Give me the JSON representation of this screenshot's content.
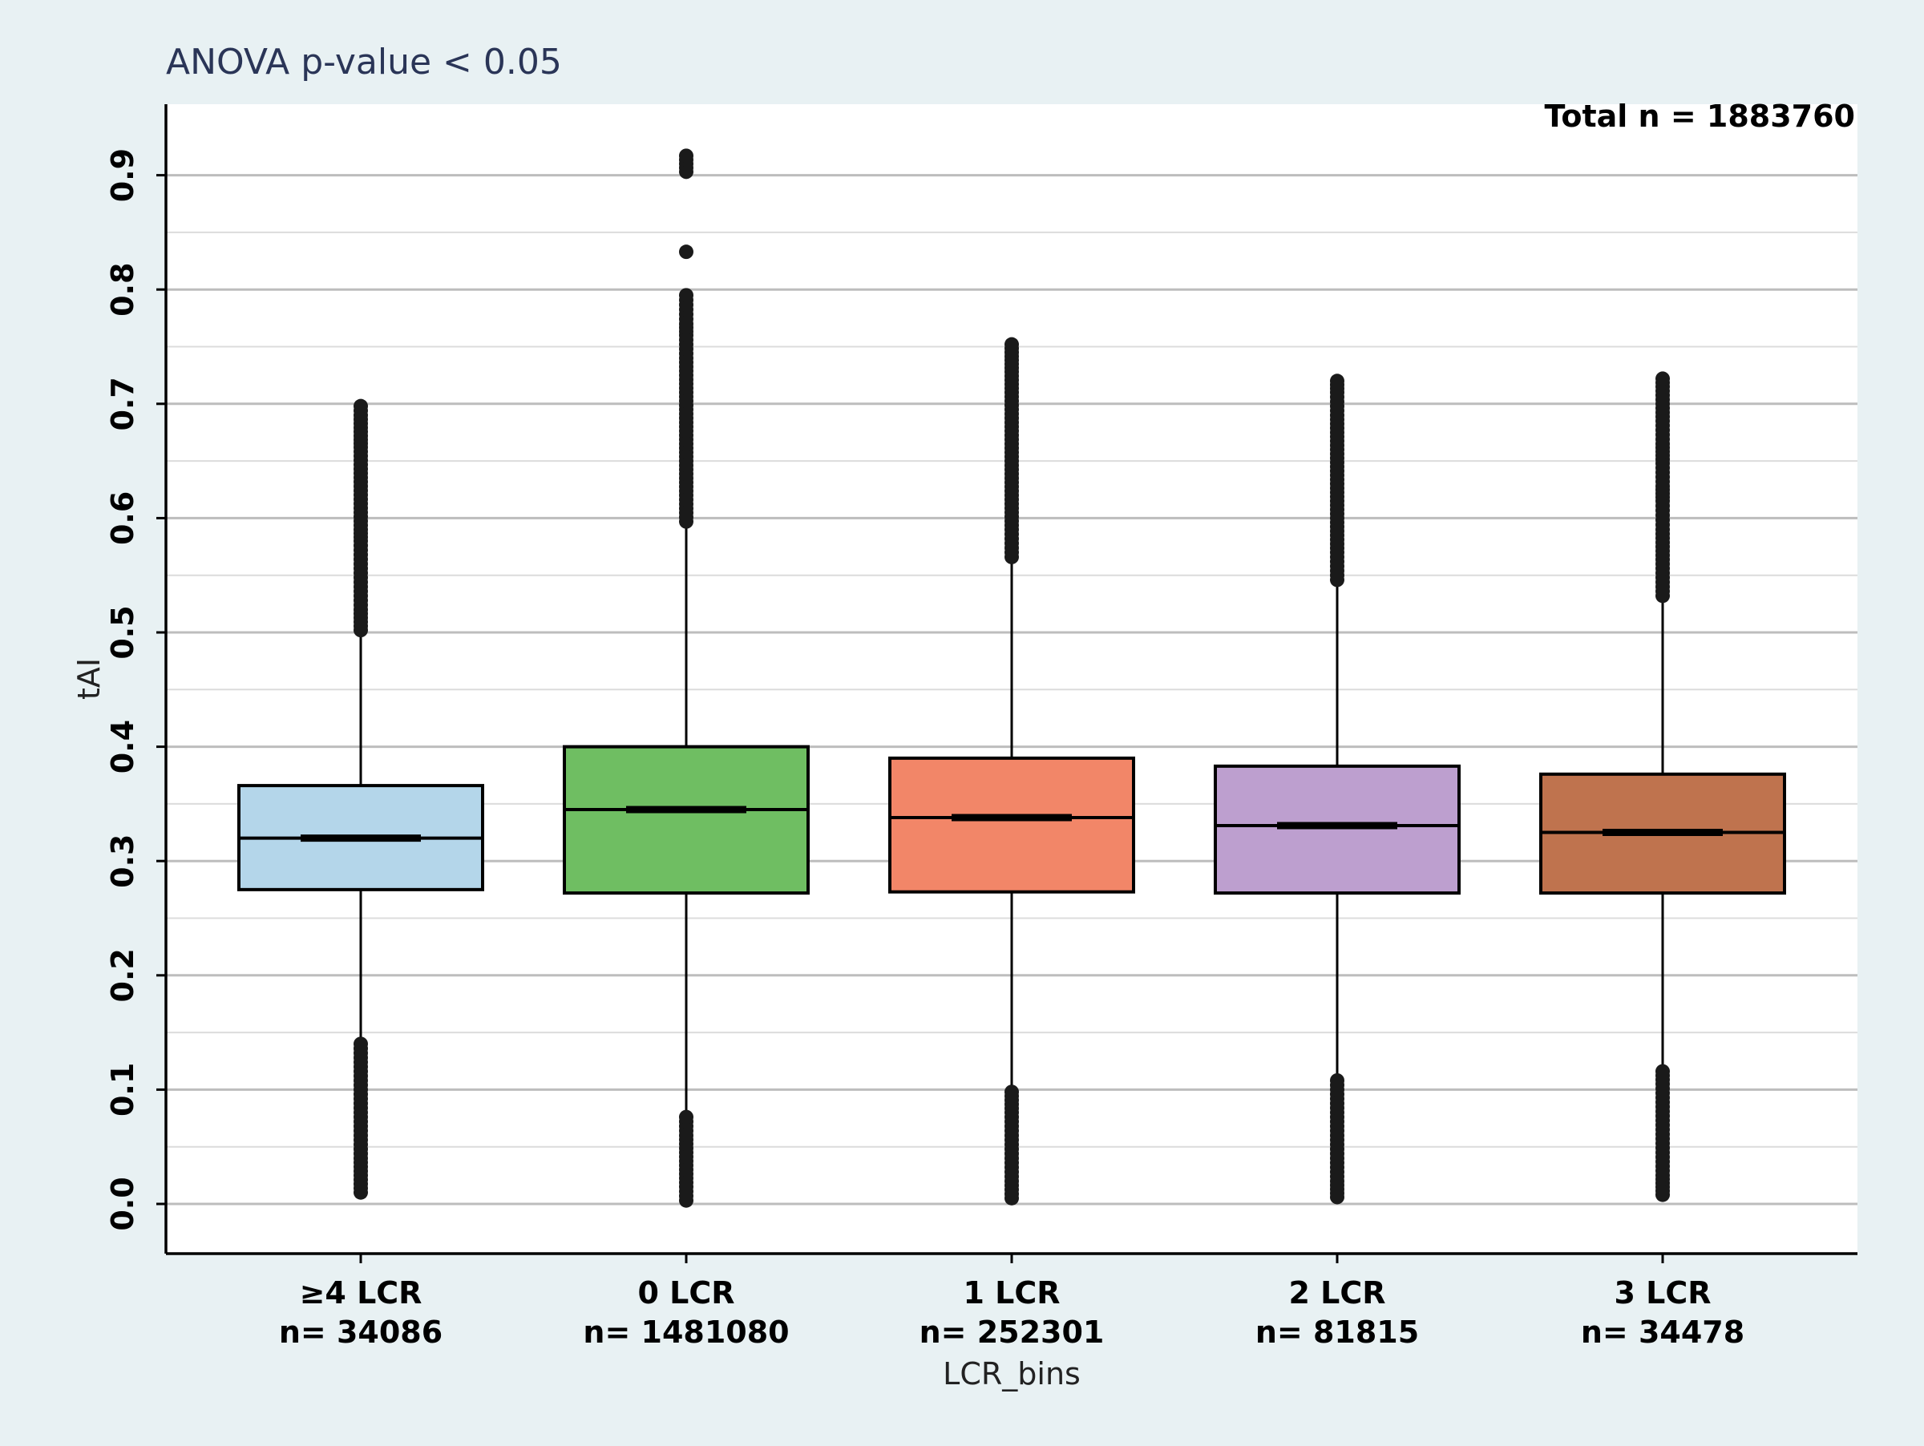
{
  "chart_data": {
    "type": "box",
    "title": "ANOVA  p-value < 0.05",
    "annotation": "Total n = 1883760",
    "xlabel": "LCR_bins",
    "ylabel": "tAI",
    "ylim": [
      -0.04,
      0.96
    ],
    "yticks": [
      0.0,
      0.1,
      0.2,
      0.3,
      0.4,
      0.5,
      0.6,
      0.7,
      0.8,
      0.9
    ],
    "ytick_labels": [
      "0.0",
      "0.1",
      "0.2",
      "0.3",
      "0.4",
      "0.5",
      "0.6",
      "0.7",
      "0.8",
      "0.9"
    ],
    "grid": true,
    "categories": [
      {
        "label": "≥4 LCR",
        "n_label": "n= 34086",
        "color": "#b4d6ea",
        "q1": 0.275,
        "median": 0.32,
        "q3": 0.366,
        "whisker_low": 0.14,
        "whisker_high": 0.502,
        "outliers_low": [
          0.01,
          0.025,
          0.04,
          0.06,
          0.08,
          0.1,
          0.12,
          0.14
        ],
        "outliers_high": [
          0.502,
          0.52,
          0.54,
          0.56,
          0.58,
          0.59,
          0.605,
          0.628,
          0.643,
          0.662,
          0.672,
          0.69,
          0.698
        ]
      },
      {
        "label": "0 LCR",
        "n_label": "n= 1481080",
        "color": "#6fbe62",
        "q1": 0.272,
        "median": 0.345,
        "q3": 0.4,
        "whisker_low": 0.076,
        "whisker_high": 0.597,
        "outliers_low": [
          0.003,
          0.015,
          0.03,
          0.045,
          0.06,
          0.076
        ],
        "outliers_high": [
          0.597,
          0.62,
          0.65,
          0.68,
          0.71,
          0.74,
          0.76,
          0.77,
          0.795,
          0.833,
          0.903,
          0.917
        ]
      },
      {
        "label": "1 LCR",
        "n_label": "n= 252301",
        "color": "#f28668",
        "q1": 0.273,
        "median": 0.338,
        "q3": 0.39,
        "whisker_low": 0.098,
        "whisker_high": 0.566,
        "outliers_low": [
          0.005,
          0.02,
          0.04,
          0.06,
          0.08,
          0.098
        ],
        "outliers_high": [
          0.566,
          0.59,
          0.62,
          0.65,
          0.68,
          0.71,
          0.728,
          0.745,
          0.752
        ]
      },
      {
        "label": "2 LCR",
        "n_label": "n= 81815",
        "color": "#bd9fcf",
        "q1": 0.272,
        "median": 0.331,
        "q3": 0.383,
        "whisker_low": 0.108,
        "whisker_high": 0.546,
        "outliers_low": [
          0.006,
          0.02,
          0.04,
          0.06,
          0.08,
          0.108
        ],
        "outliers_high": [
          0.546,
          0.57,
          0.6,
          0.63,
          0.66,
          0.69,
          0.71,
          0.72
        ]
      },
      {
        "label": "3 LCR",
        "n_label": "n= 34478",
        "color": "#bf734e",
        "q1": 0.272,
        "median": 0.325,
        "q3": 0.376,
        "whisker_low": 0.116,
        "whisker_high": 0.532,
        "outliers_low": [
          0.008,
          0.025,
          0.045,
          0.065,
          0.085,
          0.105,
          0.116
        ],
        "outliers_high": [
          0.532,
          0.56,
          0.59,
          0.615,
          0.628,
          0.648,
          0.665,
          0.685,
          0.7,
          0.715,
          0.722
        ]
      }
    ]
  }
}
